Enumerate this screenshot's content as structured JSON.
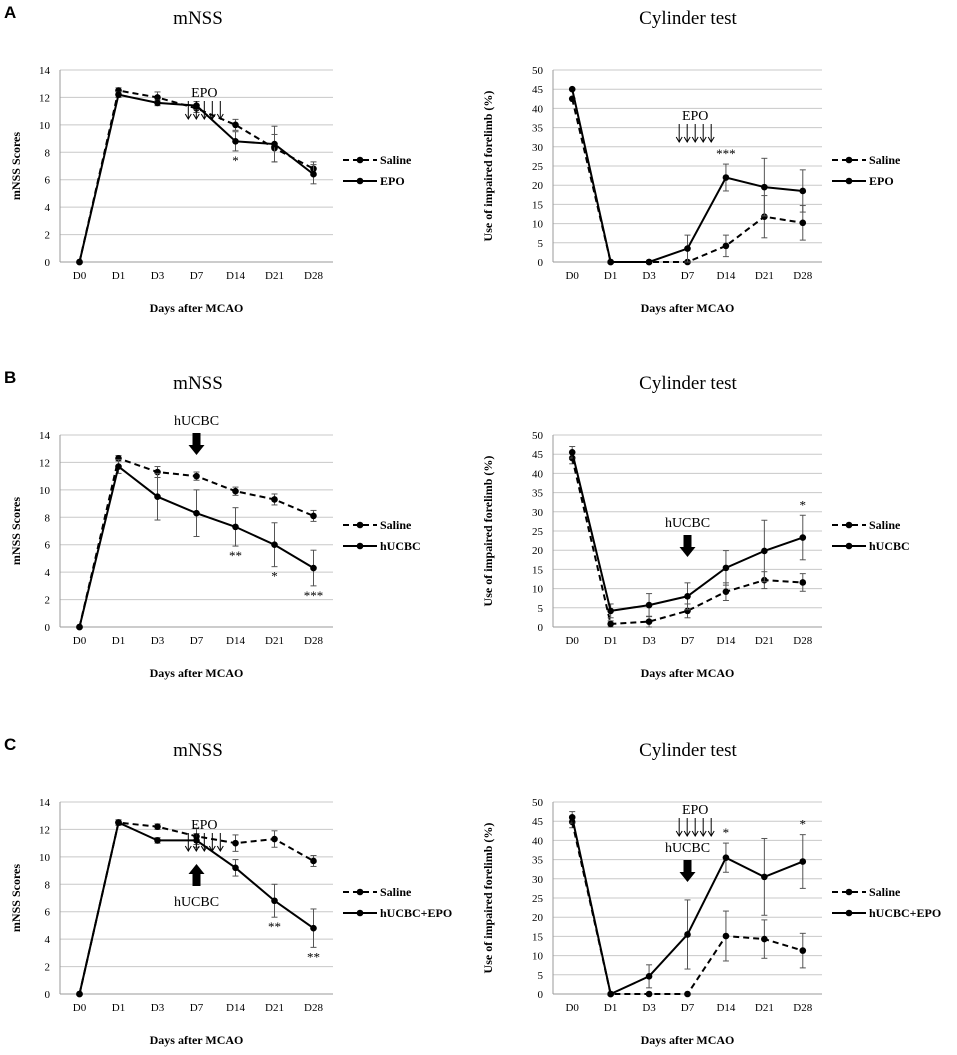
{
  "figure": {
    "colors": {
      "series": "#000000",
      "grid": "#c8c8c8",
      "axis": "#9a9a9a",
      "errorbar": "#555555"
    },
    "xcategories": [
      "D0",
      "D1",
      "D3",
      "D7",
      "D14",
      "D21",
      "D28"
    ]
  },
  "chart_data": [
    {
      "panel": "A",
      "type": "line",
      "title": "mNSS",
      "xlabel": "Days after MCAO",
      "ylabel": "mNSS Scores",
      "categories": [
        "D0",
        "D1",
        "D3",
        "D7",
        "D14",
        "D21",
        "D28"
      ],
      "ylim": [
        0,
        14
      ],
      "yticks": [
        0,
        2,
        4,
        6,
        8,
        10,
        12,
        14
      ],
      "series": [
        {
          "name": "Saline",
          "style": "dashed",
          "values": [
            0,
            12.5,
            12.0,
            11.2,
            10.0,
            8.3,
            6.8
          ],
          "errors": [
            0,
            0.2,
            0.4,
            0.3,
            0.4,
            1.0,
            0.5
          ]
        },
        {
          "name": "EPO",
          "style": "solid",
          "values": [
            0,
            12.2,
            11.6,
            11.4,
            8.8,
            8.6,
            6.4
          ],
          "errors": [
            0,
            0.2,
            0.2,
            0.3,
            0.7,
            1.3,
            0.7
          ]
        }
      ],
      "annotations": [
        {
          "text": "EPO",
          "kind": "thin-arrows",
          "at": 3.2
        }
      ],
      "significance": [
        {
          "text": "*",
          "at": 4
        }
      ]
    },
    {
      "panel": "A",
      "type": "line",
      "title": "Cylinder test",
      "xlabel": "Days after MCAO",
      "ylabel": "Use of impaired forelimb (%)",
      "categories": [
        "D0",
        "D1",
        "D3",
        "D7",
        "D14",
        "D21",
        "D28"
      ],
      "ylim": [
        0,
        50
      ],
      "yticks": [
        0,
        5,
        10,
        15,
        20,
        25,
        30,
        35,
        40,
        45,
        50
      ],
      "series": [
        {
          "name": "Saline",
          "style": "dashed",
          "values": [
            42.5,
            0,
            0,
            0,
            4.2,
            11.8,
            10.2
          ],
          "errors": [
            0,
            0,
            0,
            0,
            2.8,
            5.5,
            4.5
          ]
        },
        {
          "name": "EPO",
          "style": "solid",
          "values": [
            45,
            0,
            0,
            3.5,
            22.0,
            19.5,
            18.5
          ],
          "errors": [
            0,
            0,
            0,
            3.5,
            3.5,
            7.5,
            5.5
          ]
        }
      ],
      "annotations": [
        {
          "text": "EPO",
          "kind": "thin-arrows",
          "at": 3.2
        }
      ],
      "significance": [
        {
          "text": "***",
          "at": 4
        }
      ]
    },
    {
      "panel": "B",
      "type": "line",
      "title": "mNSS",
      "xlabel": "Days after MCAO",
      "ylabel": "mNSS Scores",
      "categories": [
        "D0",
        "D1",
        "D3",
        "D7",
        "D14",
        "D21",
        "D28"
      ],
      "ylim": [
        0,
        14
      ],
      "yticks": [
        0,
        2,
        4,
        6,
        8,
        10,
        12,
        14
      ],
      "series": [
        {
          "name": "Saline",
          "style": "dashed",
          "values": [
            0,
            12.3,
            11.3,
            11.0,
            9.9,
            9.3,
            8.1
          ],
          "errors": [
            0,
            0.2,
            0.4,
            0.3,
            0.3,
            0.4,
            0.4
          ]
        },
        {
          "name": "hUCBC",
          "style": "solid",
          "values": [
            0,
            11.7,
            9.5,
            8.3,
            7.3,
            6.0,
            4.3
          ],
          "errors": [
            0,
            0.5,
            1.7,
            1.7,
            1.4,
            1.6,
            1.3
          ]
        }
      ],
      "annotations": [
        {
          "text": "hUCBC",
          "kind": "thick-arrow-down",
          "at": 3
        }
      ],
      "significance": [
        {
          "text": "**",
          "at": 4
        },
        {
          "text": "*",
          "at": 5
        },
        {
          "text": "***",
          "at": 6
        }
      ]
    },
    {
      "panel": "B",
      "type": "line",
      "title": "Cylinder test",
      "xlabel": "Days after MCAO",
      "ylabel": "Use of impaired forelimb (%)",
      "categories": [
        "D0",
        "D1",
        "D3",
        "D7",
        "D14",
        "D21",
        "D28"
      ],
      "ylim": [
        0,
        50
      ],
      "yticks": [
        0,
        5,
        10,
        15,
        20,
        25,
        30,
        35,
        40,
        45,
        50
      ],
      "series": [
        {
          "name": "Saline",
          "style": "dashed",
          "values": [
            44,
            0.8,
            1.4,
            4.2,
            9.2,
            12.2,
            11.6
          ],
          "errors": [
            1.5,
            0.8,
            1.4,
            1.8,
            2.3,
            2.2,
            2.3
          ]
        },
        {
          "name": "hUCBC",
          "style": "solid",
          "values": [
            45.5,
            4.2,
            5.7,
            8.0,
            15.4,
            19.8,
            23.3
          ],
          "errors": [
            1.5,
            1.8,
            3.0,
            3.5,
            4.5,
            8.0,
            5.8
          ]
        }
      ],
      "annotations": [
        {
          "text": "hUCBC",
          "kind": "thick-arrow-down",
          "at": 3
        }
      ],
      "significance": [
        {
          "text": "*",
          "at": 6
        }
      ]
    },
    {
      "panel": "C",
      "type": "line",
      "title": "mNSS",
      "xlabel": "Days after MCAO",
      "ylabel": "mNSS Scores",
      "categories": [
        "D0",
        "D1",
        "D3",
        "D7",
        "D14",
        "D21",
        "D28"
      ],
      "ylim": [
        0,
        14
      ],
      "yticks": [
        0,
        2,
        4,
        6,
        8,
        10,
        12,
        14
      ],
      "series": [
        {
          "name": "Saline",
          "style": "dashed",
          "values": [
            0,
            12.5,
            12.2,
            11.5,
            11.0,
            11.3,
            9.7
          ],
          "errors": [
            0,
            0.2,
            0.2,
            0.6,
            0.6,
            0.6,
            0.4
          ]
        },
        {
          "name": "hUCBC+EPO",
          "style": "solid",
          "values": [
            0,
            12.5,
            11.2,
            11.2,
            9.2,
            6.8,
            4.8
          ],
          "errors": [
            0,
            0.2,
            0.2,
            0.5,
            0.6,
            1.2,
            1.4
          ]
        }
      ],
      "annotations": [
        {
          "text": "EPO",
          "kind": "thin-arrows",
          "at": 3.2
        },
        {
          "text": "hUCBC",
          "kind": "thick-arrow-up",
          "at": 3
        }
      ],
      "significance": [
        {
          "text": "**",
          "at": 5
        },
        {
          "text": "**",
          "at": 6
        }
      ]
    },
    {
      "panel": "C",
      "type": "line",
      "title": "Cylinder test",
      "xlabel": "Days after MCAO",
      "ylabel": "Use of impaired forelimb (%)",
      "categories": [
        "D0",
        "D1",
        "D3",
        "D7",
        "D14",
        "D21",
        "D28"
      ],
      "ylim": [
        0,
        50
      ],
      "yticks": [
        0,
        5,
        10,
        15,
        20,
        25,
        30,
        35,
        40,
        45,
        50
      ],
      "series": [
        {
          "name": "Saline",
          "style": "dashed",
          "values": [
            44.8,
            0,
            0,
            0,
            15.1,
            14.3,
            11.3
          ],
          "errors": [
            1.5,
            0,
            0,
            0,
            6.5,
            5.0,
            4.5
          ]
        },
        {
          "name": "hUCBC+EPO",
          "style": "solid",
          "values": [
            46,
            0,
            4.6,
            15.5,
            35.5,
            30.5,
            34.5
          ],
          "errors": [
            1.5,
            0,
            3.0,
            9.0,
            3.8,
            10.0,
            7.0
          ]
        }
      ],
      "annotations": [
        {
          "text": "EPO",
          "kind": "thin-arrows",
          "at": 3.2
        },
        {
          "text": "hUCBC",
          "kind": "thick-arrow-down",
          "at": 3
        }
      ],
      "significance": [
        {
          "text": "*",
          "at": 4
        },
        {
          "text": "*",
          "at": 6
        }
      ]
    }
  ]
}
